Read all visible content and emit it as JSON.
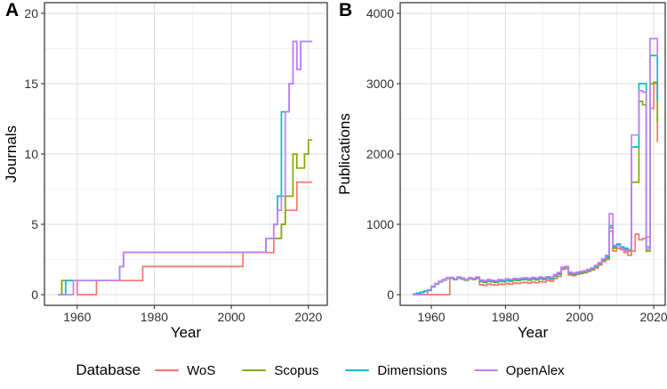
{
  "figure": {
    "panel_a_letter": "A",
    "panel_b_letter": "B"
  },
  "legend": {
    "title": "Database",
    "items": [
      {
        "label": "WoS",
        "color": "#F8766D"
      },
      {
        "label": "Scopus",
        "color": "#7CAE00"
      },
      {
        "label": "Dimensions",
        "color": "#00BFC4"
      },
      {
        "label": "OpenAlex",
        "color": "#C77CFF"
      }
    ]
  },
  "chart_data": [
    {
      "id": "A",
      "type": "line",
      "subtype": "step",
      "xlabel": "Year",
      "ylabel": "Journals",
      "xticks": [
        1960,
        1980,
        2000,
        2020
      ],
      "yticks": [
        0,
        5,
        10,
        15,
        20
      ],
      "xlim": [
        1951.5,
        2024.9
      ],
      "ylim": [
        -0.76,
        20.76
      ],
      "grid": true,
      "legend_position": "bottom",
      "x": [
        1955,
        1956,
        1957,
        1958,
        1959,
        1960,
        1961,
        1962,
        1963,
        1964,
        1965,
        1966,
        1967,
        1968,
        1969,
        1970,
        1971,
        1972,
        1973,
        1974,
        1975,
        1976,
        1977,
        1978,
        1979,
        1980,
        1981,
        1982,
        1983,
        1984,
        1985,
        1986,
        1987,
        1988,
        1989,
        1990,
        1991,
        1992,
        1993,
        1994,
        1995,
        1996,
        1997,
        1998,
        1999,
        2000,
        2001,
        2002,
        2003,
        2004,
        2005,
        2006,
        2007,
        2008,
        2009,
        2010,
        2011,
        2012,
        2013,
        2014,
        2015,
        2016,
        2017,
        2018,
        2019,
        2020,
        2021
      ],
      "series": [
        {
          "name": "WoS",
          "color": "#F8766D",
          "values": [
            0,
            1,
            1,
            1,
            1,
            0,
            0,
            0,
            0,
            0,
            1,
            1,
            1,
            1,
            1,
            1,
            1,
            1,
            1,
            1,
            1,
            1,
            2,
            2,
            2,
            2,
            2,
            2,
            2,
            2,
            2,
            2,
            2,
            2,
            2,
            2,
            2,
            2,
            2,
            2,
            2,
            2,
            2,
            2,
            2,
            2,
            2,
            2,
            3,
            3,
            3,
            3,
            3,
            3,
            3,
            3,
            4,
            4,
            5,
            6,
            6,
            6,
            8,
            8,
            8,
            8,
            8
          ]
        },
        {
          "name": "Scopus",
          "color": "#7CAE00",
          "values": [
            0,
            1,
            1,
            1,
            1,
            1,
            1,
            1,
            1,
            1,
            1,
            1,
            1,
            1,
            1,
            1,
            2,
            3,
            3,
            3,
            3,
            3,
            3,
            3,
            3,
            3,
            3,
            3,
            3,
            3,
            3,
            3,
            3,
            3,
            3,
            3,
            3,
            3,
            3,
            3,
            3,
            3,
            3,
            3,
            3,
            3,
            3,
            3,
            3,
            3,
            3,
            3,
            3,
            3,
            4,
            4,
            4,
            4,
            5,
            7,
            7,
            10,
            9,
            9,
            10,
            11,
            11
          ]
        },
        {
          "name": "Dimensions",
          "color": "#00BFC4",
          "values": [
            0,
            0,
            1,
            1,
            1,
            1,
            1,
            1,
            1,
            1,
            1,
            1,
            1,
            1,
            1,
            1,
            2,
            3,
            3,
            3,
            3,
            3,
            3,
            3,
            3,
            3,
            3,
            3,
            3,
            3,
            3,
            3,
            3,
            3,
            3,
            3,
            3,
            3,
            3,
            3,
            3,
            3,
            3,
            3,
            3,
            3,
            3,
            3,
            3,
            3,
            3,
            3,
            3,
            3,
            4,
            4,
            5,
            7,
            13,
            13,
            15,
            18,
            16,
            18,
            18,
            18,
            18
          ]
        },
        {
          "name": "OpenAlex",
          "color": "#C77CFF",
          "values": [
            0,
            0,
            0,
            0,
            1,
            1,
            1,
            1,
            1,
            1,
            1,
            1,
            1,
            1,
            1,
            1,
            2,
            3,
            3,
            3,
            3,
            3,
            3,
            3,
            3,
            3,
            3,
            3,
            3,
            3,
            3,
            3,
            3,
            3,
            3,
            3,
            3,
            3,
            3,
            3,
            3,
            3,
            3,
            3,
            3,
            3,
            3,
            3,
            3,
            3,
            3,
            3,
            3,
            3,
            4,
            4,
            5,
            6,
            7,
            13,
            15,
            18,
            16,
            18,
            18,
            18,
            18
          ]
        }
      ]
    },
    {
      "id": "B",
      "type": "line",
      "subtype": "step",
      "xlabel": "Year",
      "ylabel": "Publications",
      "xticks": [
        1960,
        1980,
        2000,
        2020
      ],
      "yticks": [
        0,
        1000,
        2000,
        3000,
        4000
      ],
      "xlim": [
        1951.6,
        2023.1
      ],
      "ylim": [
        -152,
        4152
      ],
      "grid": true,
      "legend_position": "bottom",
      "x": [
        1955,
        1956,
        1957,
        1958,
        1959,
        1960,
        1961,
        1962,
        1963,
        1964,
        1965,
        1966,
        1967,
        1968,
        1969,
        1970,
        1971,
        1972,
        1973,
        1974,
        1975,
        1976,
        1977,
        1978,
        1979,
        1980,
        1981,
        1982,
        1983,
        1984,
        1985,
        1986,
        1987,
        1988,
        1989,
        1990,
        1991,
        1992,
        1993,
        1994,
        1995,
        1996,
        1997,
        1998,
        1999,
        2000,
        2001,
        2002,
        2003,
        2004,
        2005,
        2006,
        2007,
        2008,
        2009,
        2010,
        2011,
        2012,
        2013,
        2014,
        2015,
        2016,
        2017,
        2018,
        2019,
        2020,
        2021
      ],
      "series": [
        {
          "name": "WoS",
          "color": "#F8766D",
          "values": [
            0,
            0,
            0,
            0,
            0,
            0,
            0,
            0,
            0,
            0,
            230,
            215,
            235,
            220,
            205,
            225,
            215,
            230,
            140,
            130,
            150,
            140,
            135,
            150,
            145,
            160,
            150,
            165,
            160,
            170,
            175,
            165,
            180,
            170,
            185,
            180,
            200,
            190,
            230,
            260,
            360,
            370,
            280,
            270,
            290,
            300,
            310,
            330,
            350,
            380,
            420,
            470,
            500,
            900,
            620,
            660,
            640,
            600,
            560,
            620,
            860,
            780,
            800,
            820,
            2650,
            3000,
            2170
          ]
        },
        {
          "name": "Scopus",
          "color": "#7CAE00",
          "values": [
            5,
            15,
            30,
            45,
            60,
            110,
            150,
            180,
            205,
            230,
            235,
            215,
            240,
            225,
            205,
            230,
            220,
            240,
            185,
            175,
            190,
            180,
            175,
            190,
            185,
            200,
            190,
            205,
            200,
            210,
            215,
            205,
            220,
            210,
            225,
            215,
            230,
            220,
            260,
            290,
            380,
            390,
            300,
            285,
            300,
            310,
            320,
            340,
            360,
            395,
            435,
            490,
            520,
            950,
            660,
            700,
            660,
            640,
            620,
            1600,
            1600,
            2750,
            2700,
            620,
            3000,
            3020,
            2450
          ]
        },
        {
          "name": "Dimensions",
          "color": "#00BFC4",
          "values": [
            8,
            20,
            35,
            50,
            65,
            115,
            155,
            185,
            210,
            235,
            240,
            220,
            245,
            230,
            210,
            235,
            225,
            245,
            195,
            185,
            200,
            190,
            185,
            200,
            195,
            210,
            200,
            215,
            210,
            220,
            225,
            215,
            230,
            220,
            235,
            225,
            240,
            230,
            270,
            300,
            385,
            395,
            310,
            295,
            310,
            320,
            330,
            350,
            370,
            405,
            445,
            500,
            540,
            980,
            680,
            720,
            680,
            660,
            640,
            2100,
            2100,
            3000,
            3000,
            680,
            3400,
            3400,
            2750
          ]
        },
        {
          "name": "OpenAlex",
          "color": "#C77CFF",
          "values": [
            0,
            0,
            0,
            0,
            70,
            120,
            160,
            190,
            215,
            240,
            245,
            225,
            250,
            235,
            215,
            240,
            230,
            250,
            210,
            200,
            215,
            205,
            200,
            215,
            210,
            225,
            215,
            230,
            225,
            235,
            240,
            230,
            245,
            235,
            250,
            240,
            255,
            245,
            285,
            315,
            390,
            400,
            320,
            305,
            320,
            330,
            340,
            360,
            380,
            415,
            455,
            510,
            560,
            1150,
            700,
            700,
            660,
            620,
            640,
            2270,
            2270,
            2900,
            2880,
            650,
            3640,
            3640,
            3390
          ]
        }
      ]
    }
  ]
}
